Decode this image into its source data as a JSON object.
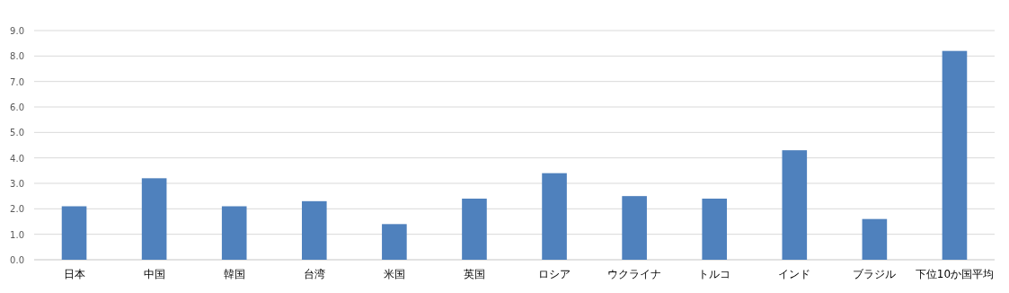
{
  "chart_data": {
    "type": "bar",
    "categories": [
      "日本",
      "中国",
      "韓国",
      "台湾",
      "米国",
      "英国",
      "ロシア",
      "ウクライナ",
      "トルコ",
      "インド",
      "ブラジル",
      "下位10か国平均"
    ],
    "values": [
      2.1,
      3.2,
      2.1,
      2.3,
      1.4,
      2.4,
      3.4,
      2.5,
      2.4,
      4.3,
      1.6,
      8.2
    ],
    "color": "#4f81bd",
    "ylim": [
      0,
      9
    ],
    "yticks": [
      {
        "value": 0,
        "label": "0.0"
      },
      {
        "value": 1,
        "label": "1.0"
      },
      {
        "value": 2,
        "label": "2.0"
      },
      {
        "value": 3,
        "label": "3.0"
      },
      {
        "value": 4,
        "label": "4.0"
      },
      {
        "value": 5,
        "label": "5.0"
      },
      {
        "value": 6,
        "label": "6.0"
      },
      {
        "value": 7,
        "label": "7.0"
      },
      {
        "value": 8,
        "label": "8.0"
      },
      {
        "value": 9,
        "label": "9.0"
      }
    ],
    "grid": "y"
  }
}
